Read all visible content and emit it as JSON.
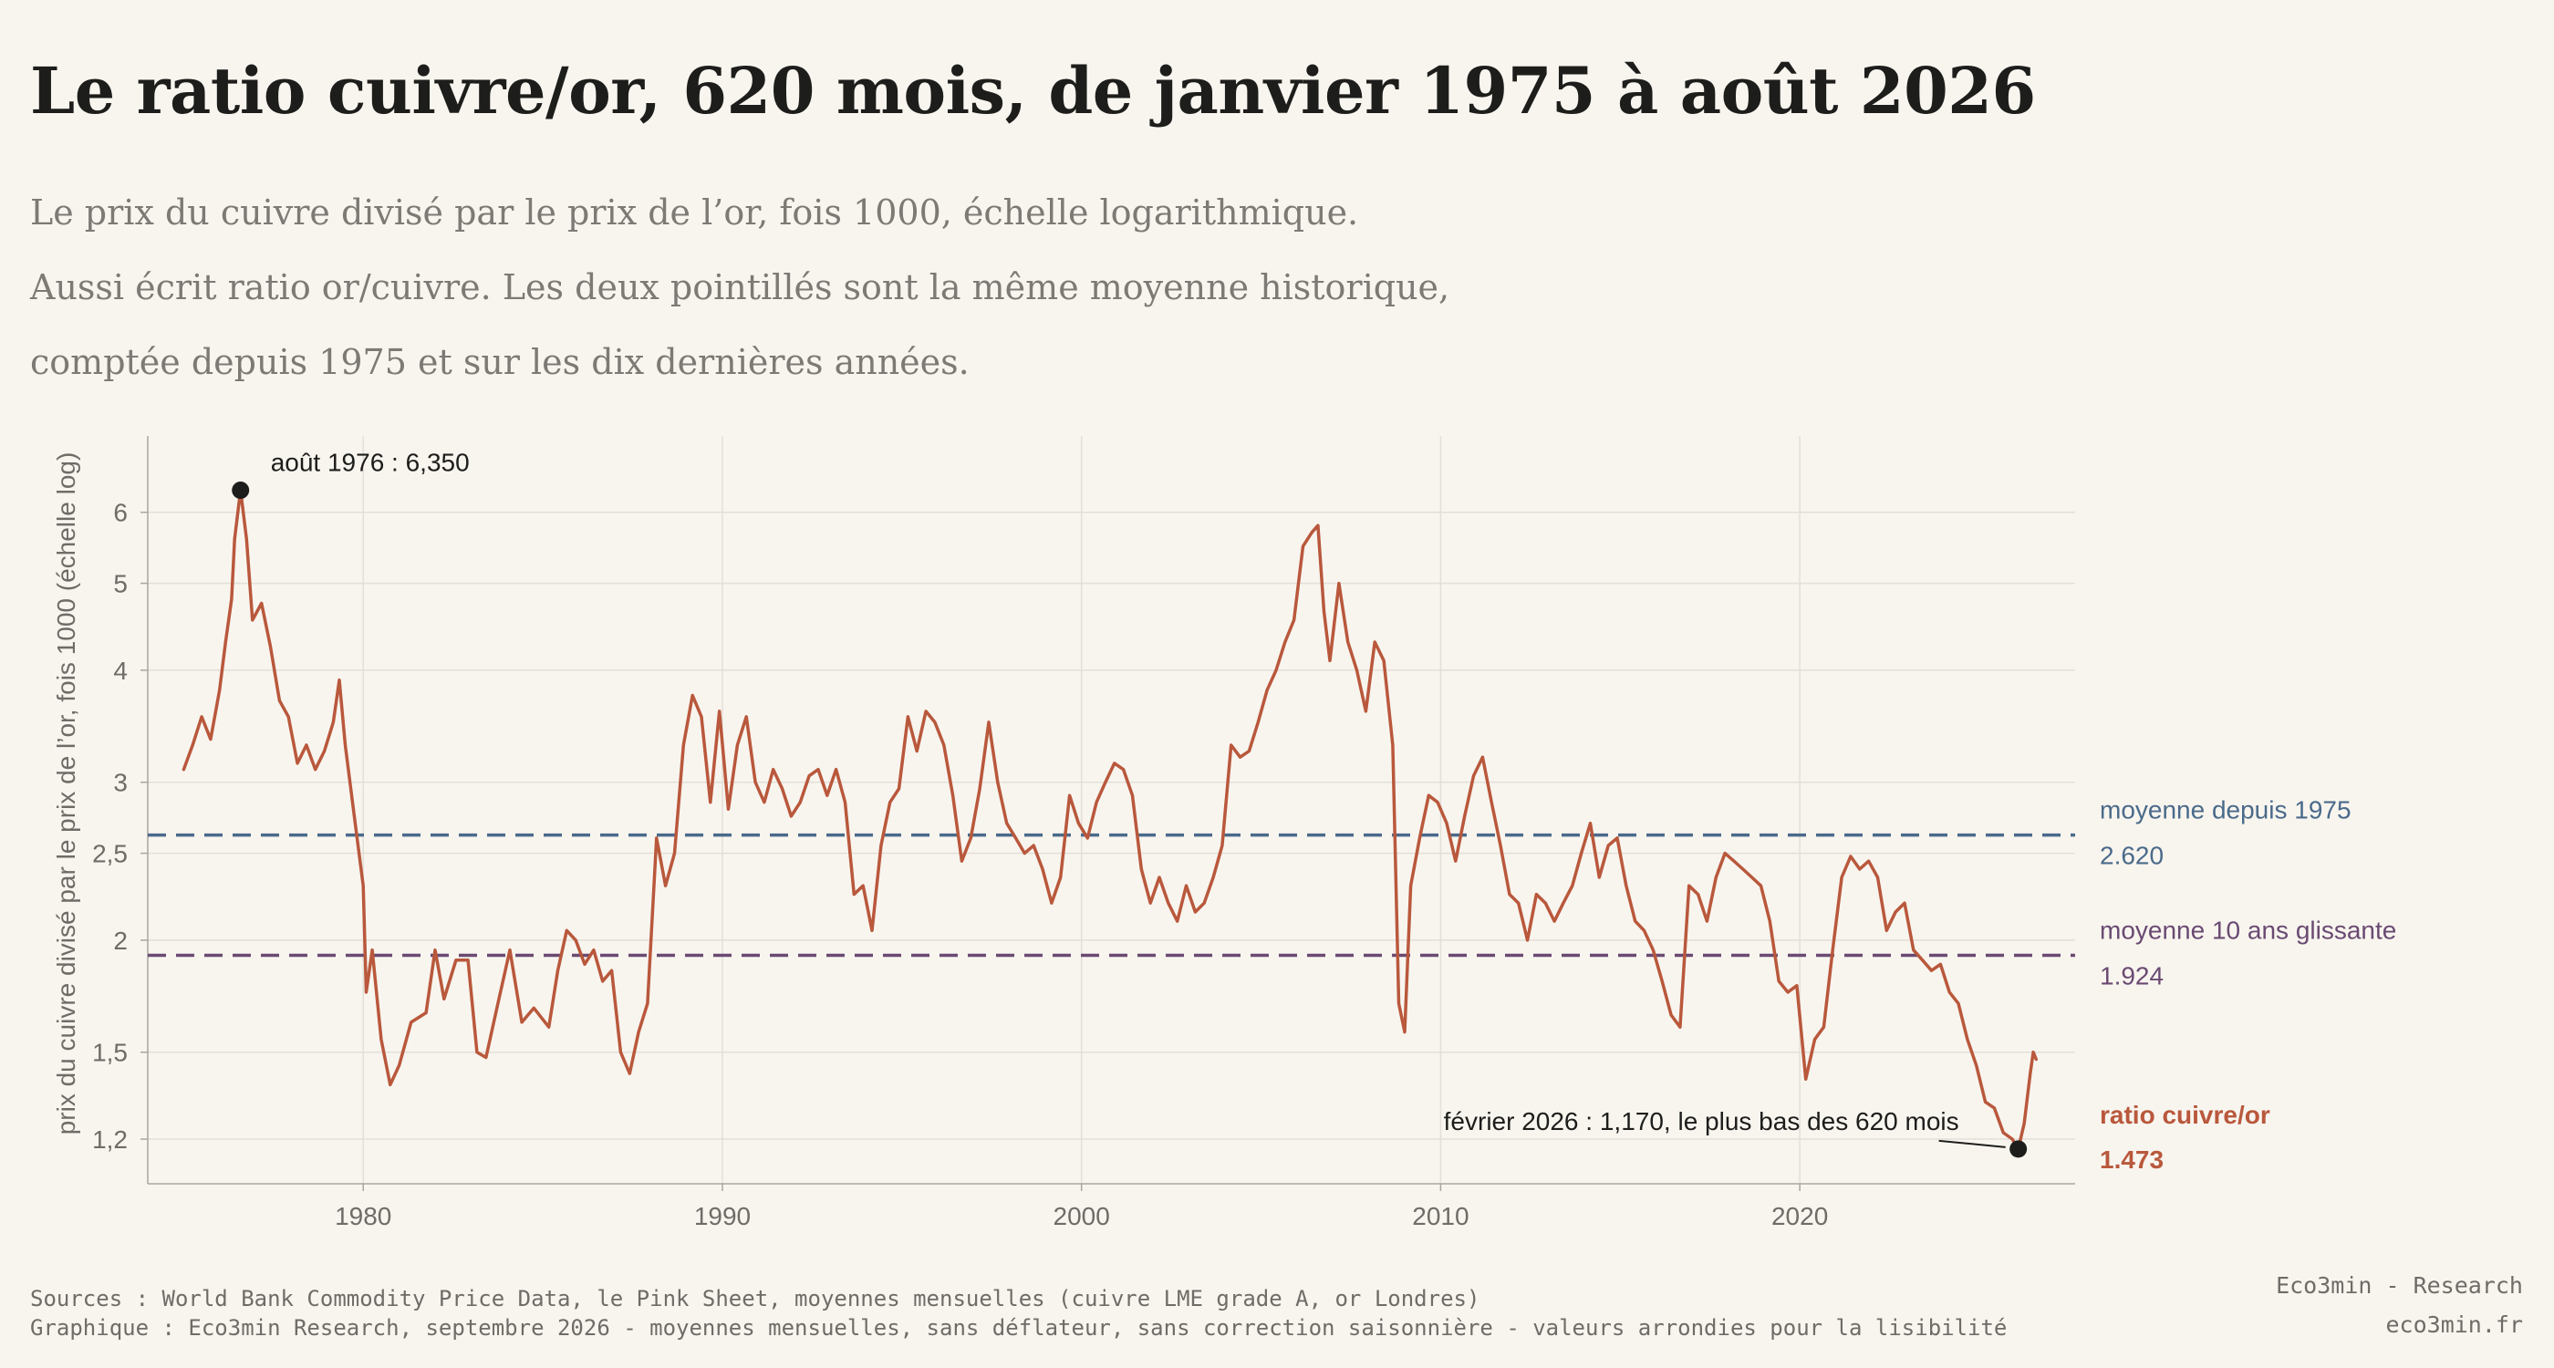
{
  "header": {
    "title": "Le ratio cuivre/or, 620 mois, de janvier 1975 à août 2026",
    "subtitle": "Le prix du cuivre divisé par le prix de l’or, fois 1000, échelle logarithmique. Aussi écrit ratio or/cuivre. Les deux pointillés sont la même moyenne historique, comptée depuis 1975 et sur les dix dernières années."
  },
  "footer": {
    "sources": "Sources : World Bank Commodity Price Data, le Pink Sheet, moyennes mensuelles (cuivre LME grade A, or Londres)",
    "graphic": "Graphique : Eco3min Research, septembre 2026 - moyennes mensuelles, sans déflateur, sans correction saisonnière - valeurs arrondies pour la lisibilité",
    "brand": "Eco3min - Research",
    "site": "eco3min.fr"
  },
  "chart_data": {
    "type": "line",
    "ylabel": "prix du cuivre divisé par le prix de l’or, fois 1000 (échelle log)",
    "xlabel": "",
    "y_scale": "log",
    "ylim": [
      1.07,
      7.3
    ],
    "xlim": [
      "1974-01",
      "2027-09"
    ],
    "grid": true,
    "x_ticks": [
      {
        "value": 1980,
        "label": "1980"
      },
      {
        "value": 1990,
        "label": "1990"
      },
      {
        "value": 2000,
        "label": "2000"
      },
      {
        "value": 2010,
        "label": "2010"
      },
      {
        "value": 2020,
        "label": "2020"
      }
    ],
    "y_ticks": [
      {
        "value": 1.2,
        "label": "1,2"
      },
      {
        "value": 1.5,
        "label": "1,5"
      },
      {
        "value": 2,
        "label": "2"
      },
      {
        "value": 2.5,
        "label": "2,5"
      },
      {
        "value": 3,
        "label": "3"
      },
      {
        "value": 4,
        "label": "4"
      },
      {
        "value": 5,
        "label": "5"
      },
      {
        "value": 6,
        "label": "6"
      }
    ],
    "reference_lines": [
      {
        "name": "moyenne depuis 1975",
        "value": 2.62,
        "value_label": "2.620",
        "color": "#4a6a8a"
      },
      {
        "name": "moyenne 10 ans glissante",
        "value": 1.924,
        "value_label": "1.924",
        "color": "#6a4a72"
      }
    ],
    "series": [
      {
        "name": "ratio cuivre/or",
        "last_label": "1.473",
        "color": "#b9583c",
        "points": [
          [
            "1975-01",
            3.1
          ],
          [
            "1975-04",
            3.3
          ],
          [
            "1975-07",
            3.55
          ],
          [
            "1975-10",
            3.35
          ],
          [
            "1976-01",
            3.8
          ],
          [
            "1976-03",
            4.3
          ],
          [
            "1976-05",
            4.8
          ],
          [
            "1976-06",
            5.6
          ],
          [
            "1976-08",
            6.35
          ],
          [
            "1976-10",
            5.6
          ],
          [
            "1976-12",
            4.55
          ],
          [
            "1977-03",
            4.75
          ],
          [
            "1977-06",
            4.25
          ],
          [
            "1977-09",
            3.7
          ],
          [
            "1977-12",
            3.55
          ],
          [
            "1978-03",
            3.15
          ],
          [
            "1978-06",
            3.3
          ],
          [
            "1978-09",
            3.1
          ],
          [
            "1978-12",
            3.25
          ],
          [
            "1979-03",
            3.5
          ],
          [
            "1979-05",
            3.9
          ],
          [
            "1979-07",
            3.3
          ],
          [
            "1979-10",
            2.75
          ],
          [
            "1980-01",
            2.3
          ],
          [
            "1980-02",
            1.75
          ],
          [
            "1980-04",
            1.95
          ],
          [
            "1980-07",
            1.55
          ],
          [
            "1980-10",
            1.38
          ],
          [
            "1981-01",
            1.45
          ],
          [
            "1981-05",
            1.62
          ],
          [
            "1981-10",
            1.66
          ],
          [
            "1982-01",
            1.95
          ],
          [
            "1982-04",
            1.72
          ],
          [
            "1982-08",
            1.9
          ],
          [
            "1982-12",
            1.9
          ],
          [
            "1983-03",
            1.5
          ],
          [
            "1983-06",
            1.48
          ],
          [
            "1983-10",
            1.7
          ],
          [
            "1984-02",
            1.95
          ],
          [
            "1984-06",
            1.62
          ],
          [
            "1984-10",
            1.68
          ],
          [
            "1985-03",
            1.6
          ],
          [
            "1985-06",
            1.85
          ],
          [
            "1985-09",
            2.05
          ],
          [
            "1985-12",
            2.0
          ],
          [
            "1986-03",
            1.88
          ],
          [
            "1986-06",
            1.95
          ],
          [
            "1986-09",
            1.8
          ],
          [
            "1986-12",
            1.85
          ],
          [
            "1987-03",
            1.5
          ],
          [
            "1987-06",
            1.42
          ],
          [
            "1987-09",
            1.58
          ],
          [
            "1987-12",
            1.7
          ],
          [
            "1988-03",
            2.6
          ],
          [
            "1988-06",
            2.3
          ],
          [
            "1988-09",
            2.5
          ],
          [
            "1988-12",
            3.3
          ],
          [
            "1989-03",
            3.75
          ],
          [
            "1989-06",
            3.55
          ],
          [
            "1989-09",
            2.85
          ],
          [
            "1989-12",
            3.6
          ],
          [
            "1990-03",
            2.8
          ],
          [
            "1990-06",
            3.3
          ],
          [
            "1990-09",
            3.55
          ],
          [
            "1990-12",
            3.0
          ],
          [
            "1991-03",
            2.85
          ],
          [
            "1991-06",
            3.1
          ],
          [
            "1991-09",
            2.95
          ],
          [
            "1991-12",
            2.75
          ],
          [
            "1992-03",
            2.85
          ],
          [
            "1992-06",
            3.05
          ],
          [
            "1992-09",
            3.1
          ],
          [
            "1992-12",
            2.9
          ],
          [
            "1993-03",
            3.1
          ],
          [
            "1993-06",
            2.85
          ],
          [
            "1993-09",
            2.25
          ],
          [
            "1993-12",
            2.3
          ],
          [
            "1994-03",
            2.05
          ],
          [
            "1994-06",
            2.55
          ],
          [
            "1994-09",
            2.85
          ],
          [
            "1994-12",
            2.95
          ],
          [
            "1995-03",
            3.55
          ],
          [
            "1995-06",
            3.25
          ],
          [
            "1995-09",
            3.6
          ],
          [
            "1995-12",
            3.5
          ],
          [
            "1996-03",
            3.3
          ],
          [
            "1996-06",
            2.9
          ],
          [
            "1996-09",
            2.45
          ],
          [
            "1996-12",
            2.6
          ],
          [
            "1997-03",
            2.95
          ],
          [
            "1997-06",
            3.5
          ],
          [
            "1997-09",
            3.0
          ],
          [
            "1997-12",
            2.7
          ],
          [
            "1998-03",
            2.6
          ],
          [
            "1998-06",
            2.5
          ],
          [
            "1998-09",
            2.55
          ],
          [
            "1998-12",
            2.4
          ],
          [
            "1999-03",
            2.2
          ],
          [
            "1999-06",
            2.35
          ],
          [
            "1999-09",
            2.9
          ],
          [
            "1999-12",
            2.7
          ],
          [
            "2000-03",
            2.6
          ],
          [
            "2000-06",
            2.85
          ],
          [
            "2000-09",
            3.0
          ],
          [
            "2000-12",
            3.15
          ],
          [
            "2001-03",
            3.1
          ],
          [
            "2001-06",
            2.9
          ],
          [
            "2001-09",
            2.4
          ],
          [
            "2001-12",
            2.2
          ],
          [
            "2002-03",
            2.35
          ],
          [
            "2002-06",
            2.2
          ],
          [
            "2002-09",
            2.1
          ],
          [
            "2002-12",
            2.3
          ],
          [
            "2003-03",
            2.15
          ],
          [
            "2003-06",
            2.2
          ],
          [
            "2003-09",
            2.35
          ],
          [
            "2003-12",
            2.55
          ],
          [
            "2004-03",
            3.3
          ],
          [
            "2004-06",
            3.2
          ],
          [
            "2004-09",
            3.25
          ],
          [
            "2004-12",
            3.5
          ],
          [
            "2005-03",
            3.8
          ],
          [
            "2005-06",
            4.0
          ],
          [
            "2005-09",
            4.3
          ],
          [
            "2005-12",
            4.55
          ],
          [
            "2006-03",
            5.5
          ],
          [
            "2006-06",
            5.7
          ],
          [
            "2006-08",
            5.8
          ],
          [
            "2006-10",
            4.65
          ],
          [
            "2006-12",
            4.1
          ],
          [
            "2007-03",
            5.0
          ],
          [
            "2007-06",
            4.3
          ],
          [
            "2007-09",
            4.0
          ],
          [
            "2007-12",
            3.6
          ],
          [
            "2008-03",
            4.3
          ],
          [
            "2008-06",
            4.1
          ],
          [
            "2008-09",
            3.3
          ],
          [
            "2008-11",
            1.7
          ],
          [
            "2009-01",
            1.58
          ],
          [
            "2009-03",
            2.3
          ],
          [
            "2009-06",
            2.6
          ],
          [
            "2009-09",
            2.9
          ],
          [
            "2009-12",
            2.85
          ],
          [
            "2010-03",
            2.7
          ],
          [
            "2010-06",
            2.45
          ],
          [
            "2010-09",
            2.75
          ],
          [
            "2010-12",
            3.05
          ],
          [
            "2011-03",
            3.2
          ],
          [
            "2011-06",
            2.85
          ],
          [
            "2011-09",
            2.55
          ],
          [
            "2011-12",
            2.25
          ],
          [
            "2012-03",
            2.2
          ],
          [
            "2012-06",
            2.0
          ],
          [
            "2012-09",
            2.25
          ],
          [
            "2012-12",
            2.2
          ],
          [
            "2013-03",
            2.1
          ],
          [
            "2013-06",
            2.2
          ],
          [
            "2013-09",
            2.3
          ],
          [
            "2013-12",
            2.5
          ],
          [
            "2014-03",
            2.7
          ],
          [
            "2014-06",
            2.35
          ],
          [
            "2014-09",
            2.55
          ],
          [
            "2014-12",
            2.6
          ],
          [
            "2015-03",
            2.3
          ],
          [
            "2015-06",
            2.1
          ],
          [
            "2015-09",
            2.05
          ],
          [
            "2015-12",
            1.95
          ],
          [
            "2016-03",
            1.8
          ],
          [
            "2016-06",
            1.65
          ],
          [
            "2016-09",
            1.6
          ],
          [
            "2016-12",
            2.3
          ],
          [
            "2017-03",
            2.25
          ],
          [
            "2017-06",
            2.1
          ],
          [
            "2017-09",
            2.35
          ],
          [
            "2017-12",
            2.5
          ],
          [
            "2018-03",
            2.45
          ],
          [
            "2018-06",
            2.4
          ],
          [
            "2018-09",
            2.35
          ],
          [
            "2018-12",
            2.3
          ],
          [
            "2019-03",
            2.1
          ],
          [
            "2019-06",
            1.8
          ],
          [
            "2019-09",
            1.75
          ],
          [
            "2019-12",
            1.78
          ],
          [
            "2020-03",
            1.4
          ],
          [
            "2020-06",
            1.55
          ],
          [
            "2020-09",
            1.6
          ],
          [
            "2020-12",
            1.95
          ],
          [
            "2021-03",
            2.35
          ],
          [
            "2021-06",
            2.48
          ],
          [
            "2021-09",
            2.4
          ],
          [
            "2021-12",
            2.45
          ],
          [
            "2022-03",
            2.35
          ],
          [
            "2022-06",
            2.05
          ],
          [
            "2022-09",
            2.15
          ],
          [
            "2022-12",
            2.2
          ],
          [
            "2023-03",
            1.95
          ],
          [
            "2023-06",
            1.9
          ],
          [
            "2023-09",
            1.85
          ],
          [
            "2023-12",
            1.88
          ],
          [
            "2024-03",
            1.75
          ],
          [
            "2024-06",
            1.7
          ],
          [
            "2024-09",
            1.55
          ],
          [
            "2024-12",
            1.45
          ],
          [
            "2025-03",
            1.32
          ],
          [
            "2025-06",
            1.3
          ],
          [
            "2025-09",
            1.22
          ],
          [
            "2025-12",
            1.2
          ],
          [
            "2026-02",
            1.17
          ],
          [
            "2026-04",
            1.25
          ],
          [
            "2026-06",
            1.42
          ],
          [
            "2026-07",
            1.5
          ],
          [
            "2026-08",
            1.473
          ]
        ]
      }
    ],
    "annotations": [
      {
        "date": "1976-08",
        "value": 6.35,
        "text": "août 1976 : 6,350",
        "placement": "right"
      },
      {
        "date": "2026-02",
        "value": 1.17,
        "text": "février 2026 : 1,170, le plus bas des 620 mois",
        "placement": "left"
      }
    ]
  }
}
